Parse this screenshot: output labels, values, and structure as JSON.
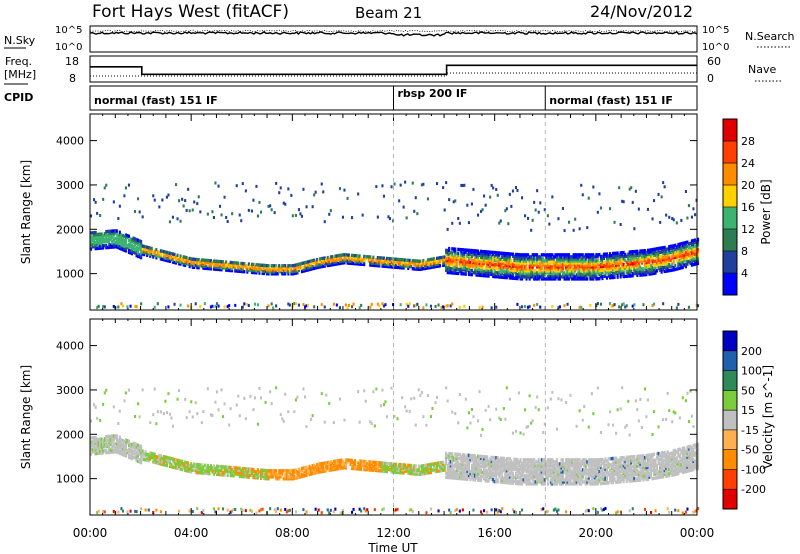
{
  "header": {
    "station": "Fort Hays West (fitACF)",
    "beam": "Beam 21",
    "date": "24/Nov/2012"
  },
  "noise_panel": {
    "left_label": "N.Sky",
    "right_label": "N.Search",
    "left_ticks": [
      "10^5",
      "10^0"
    ],
    "right_ticks": [
      "10^5",
      "10^0"
    ]
  },
  "freq_panel": {
    "left_label_1": "Freq.",
    "left_label_2": "[MHz]",
    "right_label": "Nave",
    "left_ticks": [
      "18",
      "8"
    ],
    "right_ticks": [
      "60",
      "0"
    ],
    "freq_segments": [
      {
        "start_hour": 0,
        "end_hour": 2.05,
        "value_mhz": 14
      },
      {
        "start_hour": 2.05,
        "end_hour": 14.1,
        "value_mhz": 10.6
      },
      {
        "start_hour": 14.1,
        "end_hour": 24,
        "value_mhz": 14.7
      }
    ]
  },
  "cpid_panel": {
    "label": "CPID",
    "segments": [
      {
        "start_hour": 0,
        "label": "normal (fast) 151 IF"
      },
      {
        "start_hour": 12,
        "label": "rbsp 200 IF"
      },
      {
        "start_hour": 18,
        "label": "normal (fast) 151 IF"
      }
    ]
  },
  "chart_data": [
    {
      "type": "heatmap",
      "quantity": "Power",
      "ylabel": "Slant Range [km]",
      "colorbar_label": "Power [dB]",
      "ylim": [
        180,
        4600
      ],
      "xlim": [
        0,
        24
      ],
      "y_ticks": [
        1000,
        2000,
        3000,
        4000
      ],
      "colorbar_ticks": [
        "28",
        "24",
        "20",
        "16",
        "12",
        "8",
        "4"
      ],
      "colorbar_colors": [
        "#0000ff",
        "#2040a0",
        "#2e7d50",
        "#3cb371",
        "#ffd000",
        "#ff8c00",
        "#ff4000",
        "#e00000"
      ],
      "echo_bands": [
        {
          "hours": [
            0,
            1,
            2,
            3,
            4,
            5,
            6,
            7,
            8,
            9,
            10,
            11,
            12,
            13,
            14,
            15,
            16,
            17,
            18,
            19,
            20,
            21,
            22,
            23,
            24
          ],
          "range_km": [
            1750,
            1800,
            1550,
            1400,
            1250,
            1200,
            1150,
            1100,
            1100,
            1250,
            1350,
            1300,
            1250,
            1200,
            1300,
            1250,
            1200,
            1150,
            1150,
            1150,
            1150,
            1200,
            1250,
            1350,
            1500
          ]
        }
      ]
    },
    {
      "type": "heatmap",
      "quantity": "Velocity",
      "ylabel": "Slant Range [km]",
      "colorbar_label": "Velocity [m s^-1]",
      "ylim": [
        180,
        4600
      ],
      "xlim": [
        0,
        24
      ],
      "y_ticks": [
        1000,
        2000,
        3000,
        4000
      ],
      "colorbar_ticks": [
        "200",
        "100",
        "50",
        "15",
        "-15",
        "-50",
        "-100",
        "-200"
      ],
      "colorbar_colors": [
        "#e00000",
        "#ff4000",
        "#ff8c00",
        "#ffb050",
        "#c0c0c0",
        "#7ccd3c",
        "#2e8b57",
        "#2060b0",
        "#0000c0"
      ]
    }
  ],
  "x_axis": {
    "label": "Time UT",
    "ticks": [
      "00:00",
      "04:00",
      "08:00",
      "12:00",
      "16:00",
      "20:00",
      "00:00"
    ]
  }
}
